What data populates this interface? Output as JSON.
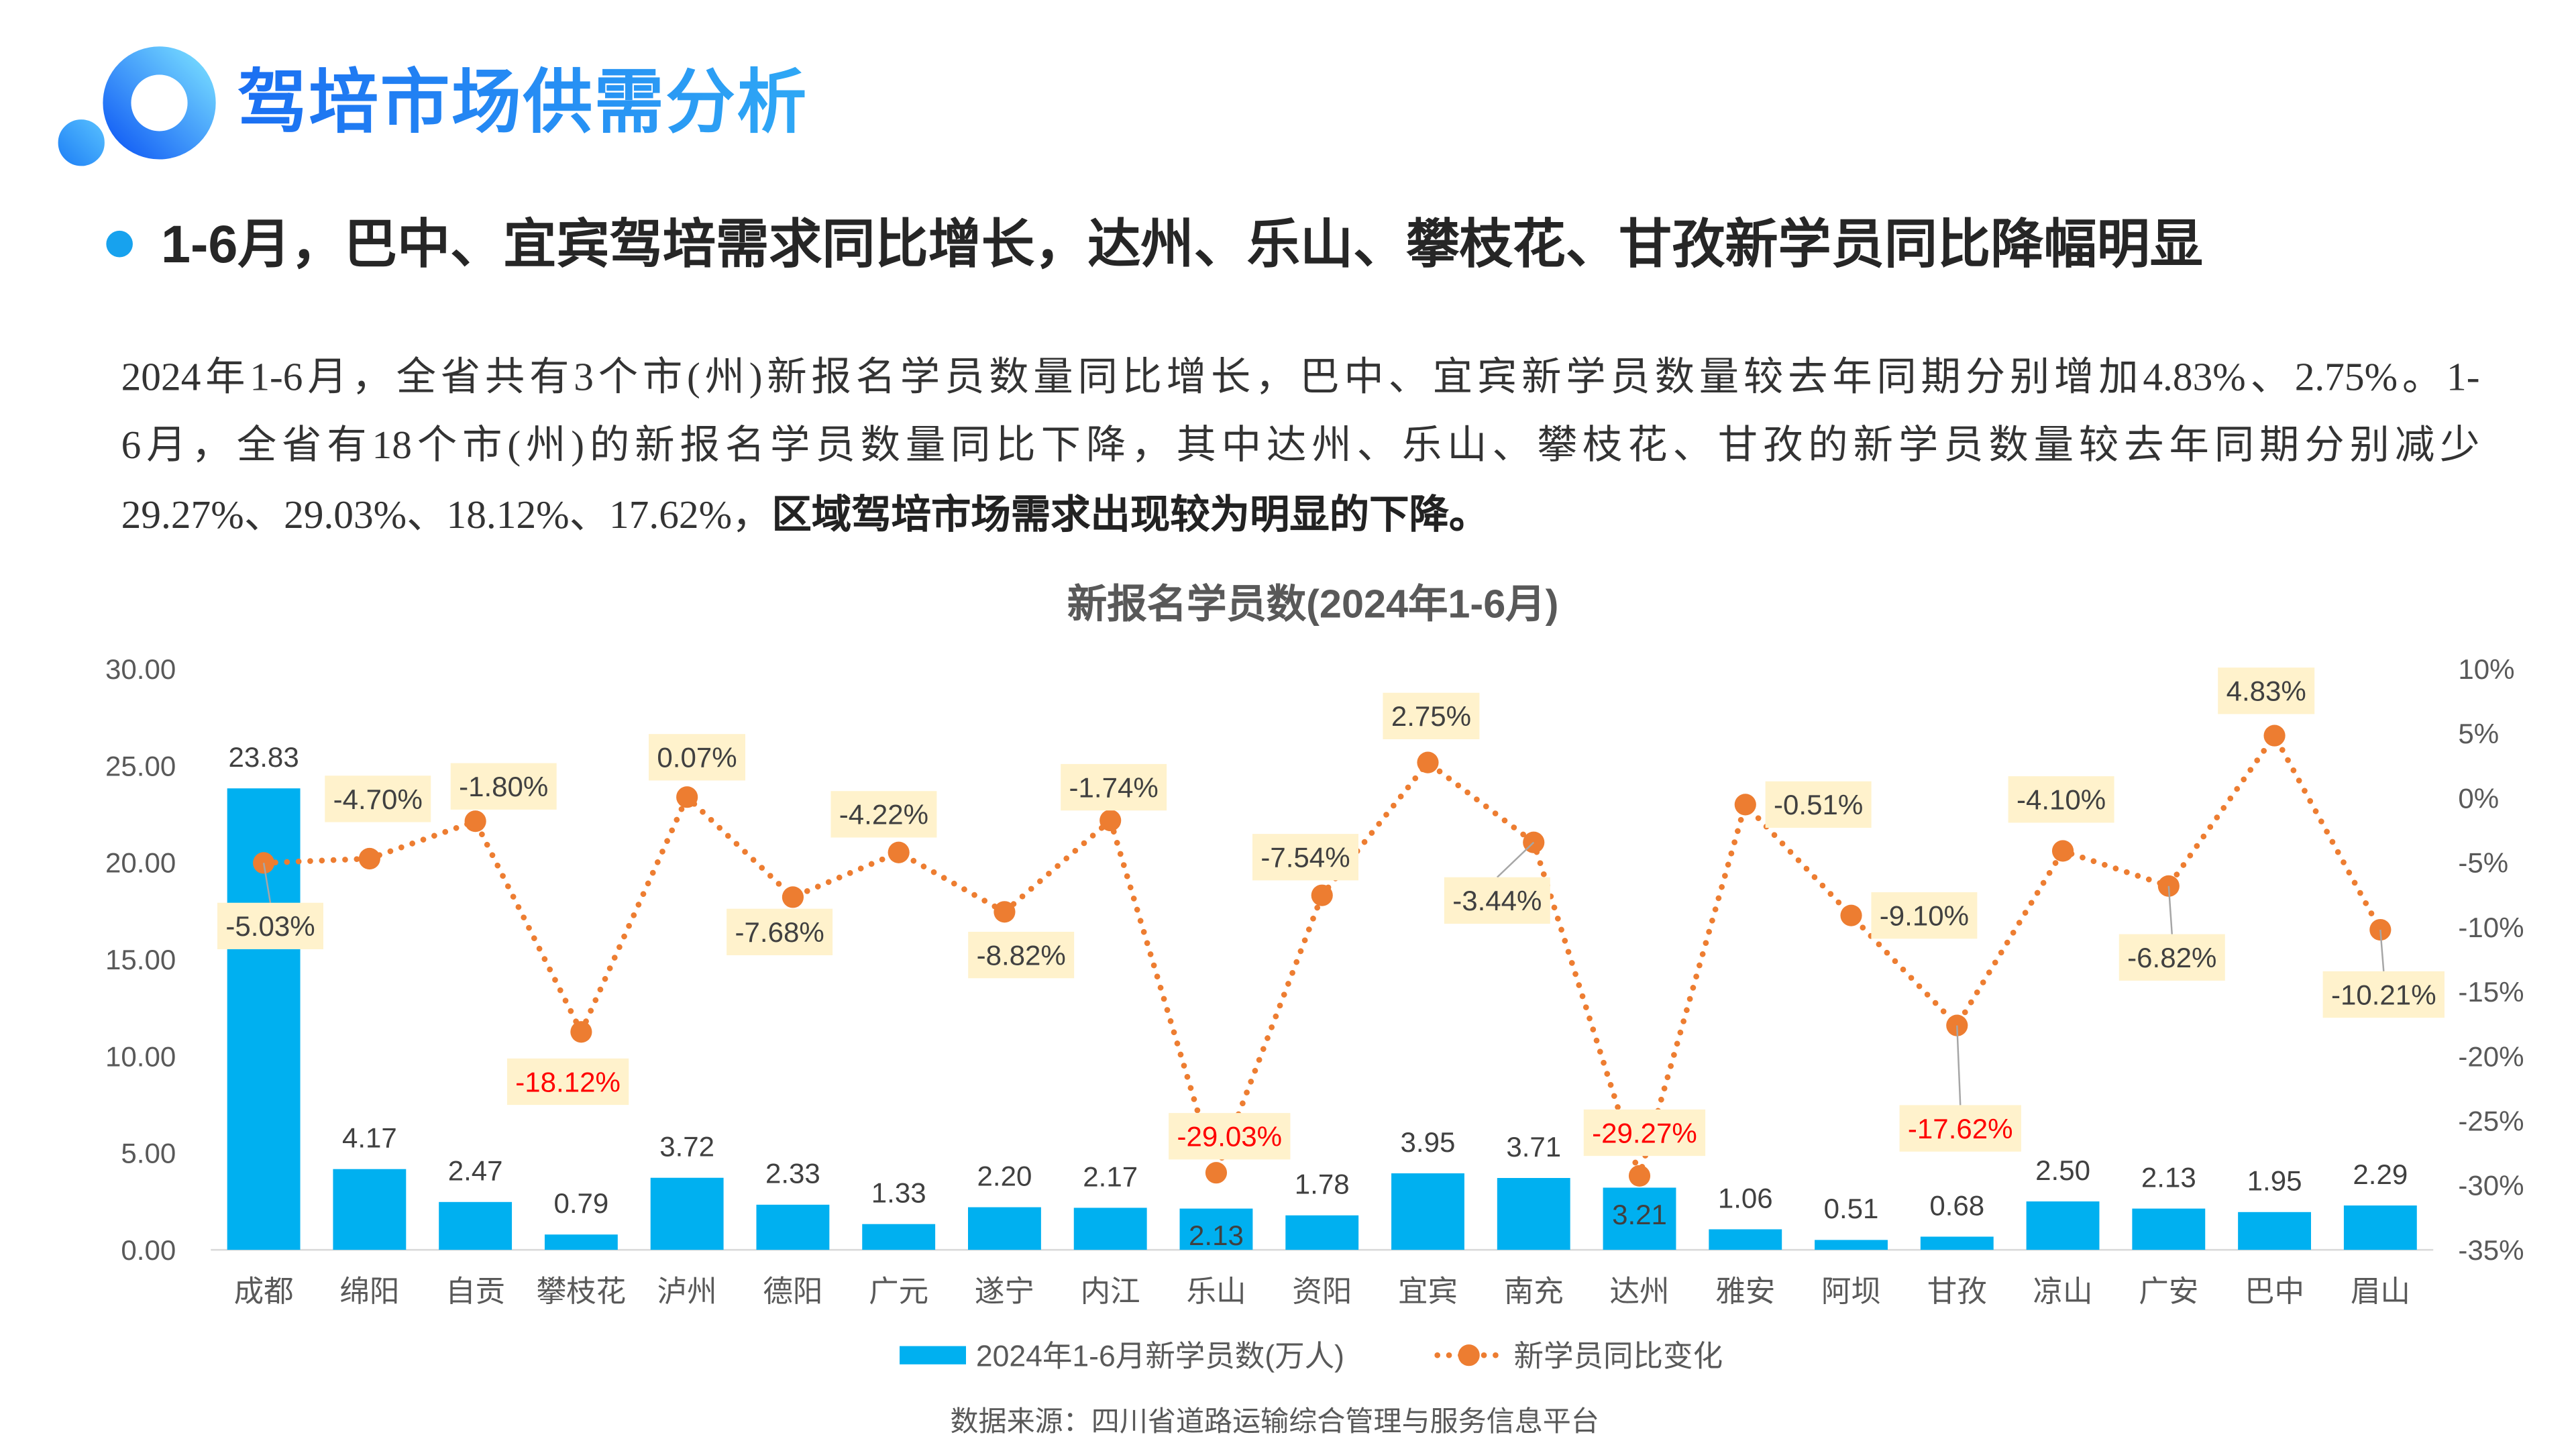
{
  "header": {
    "title": "驾培市场供需分析"
  },
  "headline": "1-6月，巴中、宜宾驾培需求同比增长，达州、乐山、攀枝花、甘孜新学员同比降幅明显",
  "paragraph": {
    "line1": "2024年1-6月，全省共有3个市(州)新报名学员数量同比增长，巴中、宜宾新学员数量较去年同期分别增加4.83%、2.75%。1-",
    "line2": "6月，全省有18个市(州)的新报名学员数量同比下降，其中达州、乐山、攀枝花、甘孜的新学员数量较去年同期分别减少",
    "line3": "29.27%、29.03%、18.12%、17.62%，",
    "line3_bold": "区域驾培市场需求出现较为明显的下降。"
  },
  "chart_data": {
    "type": "bar",
    "title": "新报名学员数(2024年1-6月)",
    "xlabel": "",
    "ylabel": "",
    "categories": [
      "成都",
      "绵阳",
      "自贡",
      "攀枝花",
      "泸州",
      "德阳",
      "广元",
      "遂宁",
      "内江",
      "乐山",
      "资阳",
      "宜宾",
      "南充",
      "达州",
      "雅安",
      "阿坝",
      "甘孜",
      "凉山",
      "广安",
      "巴中",
      "眉山"
    ],
    "series": [
      {
        "name": "2024年1-6月新学员数(万人)",
        "type": "bar",
        "axis": "left",
        "values": [
          23.83,
          4.17,
          2.47,
          0.79,
          3.72,
          2.33,
          1.33,
          2.2,
          2.17,
          2.13,
          1.78,
          3.95,
          3.71,
          3.21,
          1.06,
          0.51,
          0.68,
          2.5,
          2.13,
          1.95,
          2.29
        ],
        "labels": [
          "23.83",
          "4.17",
          "2.47",
          "0.79",
          "3.72",
          "2.33",
          "1.33",
          "2.20",
          "2.17",
          "2.13",
          "1.78",
          "3.95",
          "3.71",
          "3.21",
          "1.06",
          "0.51",
          "0.68",
          "2.50",
          "2.13",
          "1.95",
          "2.29"
        ]
      },
      {
        "name": "新学员同比变化",
        "type": "line",
        "axis": "right",
        "values": [
          -5.03,
          -4.7,
          -1.8,
          -18.12,
          0.07,
          -7.68,
          -4.22,
          -8.82,
          -1.74,
          -29.03,
          -7.54,
          2.75,
          -3.44,
          -29.27,
          -0.51,
          -9.1,
          -17.62,
          -4.1,
          -6.82,
          4.83,
          -10.21
        ],
        "labels": [
          "-5.03%",
          "-4.70%",
          "-1.80%",
          "-18.12%",
          "0.07%",
          "-7.68%",
          "-4.22%",
          "-8.82%",
          "-1.74%",
          "-29.03%",
          "-7.54%",
          "2.75%",
          "-3.44%",
          "-29.27%",
          "-0.51%",
          "-9.10%",
          "-17.62%",
          "-4.10%",
          "-6.82%",
          "4.83%",
          "-10.21%"
        ]
      }
    ],
    "y_left": {
      "min": 0,
      "max": 30,
      "ticks": [
        "0.00",
        "5.00",
        "10.00",
        "15.00",
        "20.00",
        "25.00",
        "30.00"
      ]
    },
    "y_right": {
      "min": -35,
      "max": 10,
      "ticks": [
        "-35%",
        "-30%",
        "-25%",
        "-20%",
        "-15%",
        "-10%",
        "-5%",
        "0%",
        "5%",
        "10%"
      ]
    },
    "highlighted_labels": [
      "攀枝花",
      "乐山",
      "达州",
      "甘孜"
    ],
    "grid": false,
    "legend": "bottom"
  },
  "colors": {
    "brand_blue": "#1E88F5",
    "bar": "#00B0F0",
    "line": "#ED7D31",
    "label_bg": "#FFF2CC",
    "highlight": "#FF0000",
    "label_text": "#404040"
  },
  "source": "数据来源：四川省道路运输综合管理与服务信息平台"
}
